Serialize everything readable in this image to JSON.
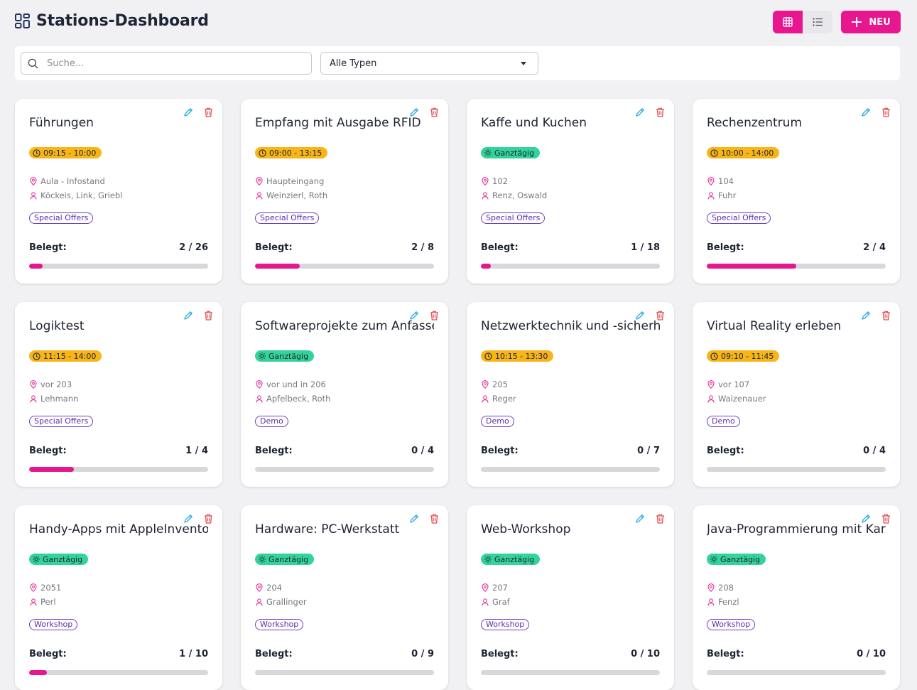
{
  "header": {
    "title": "Stations-Dashboard",
    "new_label": "NEU"
  },
  "filters": {
    "search_placeholder": "Suche...",
    "type_value": "Alle Typen"
  },
  "colors": {
    "accent": "#e8168f",
    "timed_badge": "#f7b517",
    "allday_badge": "#33d49a",
    "tag_border": "#6d3fc0",
    "edit_icon": "#2aa9e0",
    "delete_icon": "#e5484d"
  },
  "icons": {
    "title": "dashboard-grid-icon",
    "grid_view": "grid-view-icon",
    "list_view": "list-view-icon",
    "new": "plus-icon",
    "search": "search-icon",
    "edit": "pencil-icon",
    "delete": "trash-icon",
    "clock": "clock-icon",
    "sun": "sun-icon",
    "location": "map-pin-icon",
    "person": "person-icon"
  },
  "occupancy_label": "Belegt:",
  "stations": [
    {
      "name": "Führungen",
      "time": "09:15 - 10:00",
      "allday": false,
      "location": "Aula - Infostand",
      "people": "Köckeis, Link, Griebl",
      "tag": "Special Offers",
      "occupancy": "2 / 26",
      "fill": 0.077
    },
    {
      "name": "Empfang mit Ausgabe RFID",
      "time": "09:00 - 13:15",
      "allday": false,
      "location": "Haupteingang",
      "people": "Weinzierl, Roth",
      "tag": "Special Offers",
      "occupancy": "2 / 8",
      "fill": 0.25
    },
    {
      "name": "Kaffe und Kuchen",
      "time": "Ganztägig",
      "allday": true,
      "location": "102",
      "people": "Renz, Oswald",
      "tag": "Special Offers",
      "occupancy": "1 / 18",
      "fill": 0.056
    },
    {
      "name": "Rechenzentrum",
      "time": "10:00 - 14:00",
      "allday": false,
      "location": "104",
      "people": "Fuhr",
      "tag": "Special Offers",
      "occupancy": "2 / 4",
      "fill": 0.5
    },
    {
      "name": "Logiktest",
      "time": "11:15 - 14:00",
      "allday": false,
      "location": "vor 203",
      "people": "Lehmann",
      "tag": "Special Offers",
      "occupancy": "1 / 4",
      "fill": 0.25
    },
    {
      "name": "Softwareprojekte zum Anfassen",
      "time": "Ganztägig",
      "allday": true,
      "location": "vor und in 206",
      "people": "Apfelbeck, Roth",
      "tag": "Demo",
      "occupancy": "0 / 4",
      "fill": 0
    },
    {
      "name": "Netzwerktechnik und -sicherheit",
      "time": "10:15 - 13:30",
      "allday": false,
      "location": "205",
      "people": "Reger",
      "tag": "Demo",
      "occupancy": "0 / 7",
      "fill": 0
    },
    {
      "name": "Virtual Reality erleben",
      "time": "09:10 - 11:45",
      "allday": false,
      "location": "vor 107",
      "people": "Waizenauer",
      "tag": "Demo",
      "occupancy": "0 / 4",
      "fill": 0
    },
    {
      "name": "Handy-Apps mit AppleInventor",
      "time": "Ganztägig",
      "allday": true,
      "location": "2051",
      "people": "Perl",
      "tag": "Workshop",
      "occupancy": "1 / 10",
      "fill": 0.1
    },
    {
      "name": "Hardware: PC-Werkstatt",
      "time": "Ganztägig",
      "allday": true,
      "location": "204",
      "people": "Grallinger",
      "tag": "Workshop",
      "occupancy": "0 / 9",
      "fill": 0
    },
    {
      "name": "Web-Workshop",
      "time": "Ganztägig",
      "allday": true,
      "location": "207",
      "people": "Graf",
      "tag": "Workshop",
      "occupancy": "0 / 10",
      "fill": 0
    },
    {
      "name": "Java-Programmierung mit Karol",
      "time": "Ganztägig",
      "allday": true,
      "location": "208",
      "people": "Fenzl",
      "tag": "Workshop",
      "occupancy": "0 / 10",
      "fill": 0
    }
  ]
}
